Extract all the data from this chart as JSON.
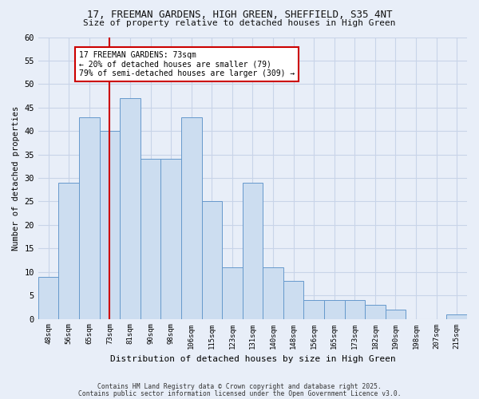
{
  "title_line1": "17, FREEMAN GARDENS, HIGH GREEN, SHEFFIELD, S35 4NT",
  "title_line2": "Size of property relative to detached houses in High Green",
  "xlabel": "Distribution of detached houses by size in High Green",
  "ylabel": "Number of detached properties",
  "categories": [
    "48sqm",
    "56sqm",
    "65sqm",
    "73sqm",
    "81sqm",
    "90sqm",
    "98sqm",
    "106sqm",
    "115sqm",
    "123sqm",
    "131sqm",
    "140sqm",
    "148sqm",
    "156sqm",
    "165sqm",
    "173sqm",
    "182sqm",
    "190sqm",
    "198sqm",
    "207sqm",
    "215sqm"
  ],
  "values": [
    9,
    29,
    43,
    40,
    47,
    34,
    34,
    43,
    25,
    11,
    29,
    11,
    8,
    4,
    4,
    4,
    3,
    2,
    0,
    0,
    1
  ],
  "bar_color": "#ccddf0",
  "bar_edge_color": "#6699cc",
  "highlight_index": 3,
  "highlight_line_color": "#cc0000",
  "ylim": [
    0,
    60
  ],
  "yticks": [
    0,
    5,
    10,
    15,
    20,
    25,
    30,
    35,
    40,
    45,
    50,
    55,
    60
  ],
  "annotation_text": "17 FREEMAN GARDENS: 73sqm\n← 20% of detached houses are smaller (79)\n79% of semi-detached houses are larger (309) →",
  "annotation_box_color": "#ffffff",
  "annotation_box_edge_color": "#cc0000",
  "background_color": "#e8eef8",
  "grid_color": "#c8d4e8",
  "footer_line1": "Contains HM Land Registry data © Crown copyright and database right 2025.",
  "footer_line2": "Contains public sector information licensed under the Open Government Licence v3.0."
}
